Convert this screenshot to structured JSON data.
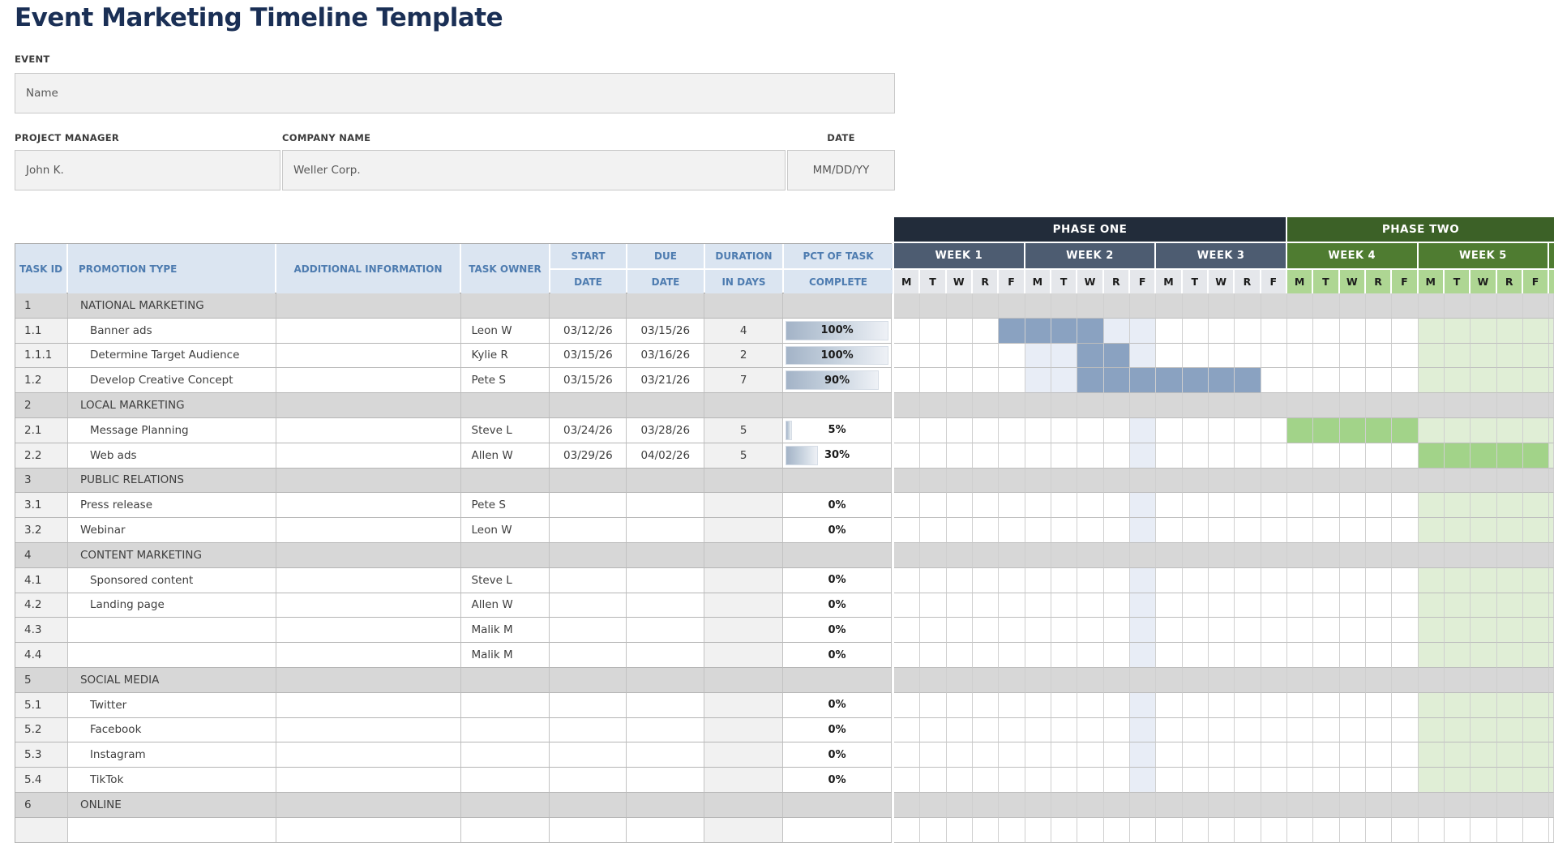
{
  "title": "Event Marketing Timeline Template",
  "form": {
    "event_label": "EVENT",
    "event_value": "Name",
    "pm_label": "PROJECT MANAGER",
    "pm_value": "John K.",
    "company_label": "COMPANY NAME",
    "company_value": "Weller Corp.",
    "date_label": "DATE",
    "date_value": "MM/DD/YY"
  },
  "table": {
    "headers": {
      "task_id": "TASK ID",
      "promotion_type": "PROMOTION TYPE",
      "additional_information": "ADDITIONAL INFORMATION",
      "task_owner": "TASK OWNER",
      "start_line1": "START",
      "start_line2": "DATE",
      "due_line1": "DUE",
      "due_line2": "DATE",
      "duration_line1": "DURATION",
      "duration_line2": "IN DAYS",
      "pct_line1": "PCT OF TASK",
      "pct_line2": "COMPLETE"
    },
    "rows": [
      {
        "id": "1",
        "name": "NATIONAL MARKETING",
        "section": true
      },
      {
        "id": "1.1",
        "name": "Banner ads",
        "indent": true,
        "owner": "Leon W",
        "start": "03/12/26",
        "due": "03/15/26",
        "duration": "4",
        "pct": "100%",
        "pct_num": 100,
        "gantt": {
          "bar": {
            "color": "blue",
            "from": 5,
            "to": 8
          },
          "tints": [
            {
              "color": "blue",
              "from": 9,
              "to": 10
            },
            {
              "color": "green",
              "from": 21,
              "to": 26
            }
          ]
        }
      },
      {
        "id": "1.1.1",
        "name": "Determine Target Audience",
        "indent": true,
        "owner": "Kylie R",
        "start": "03/15/26",
        "due": "03/16/26",
        "duration": "2",
        "pct": "100%",
        "pct_num": 100,
        "gantt": {
          "bar": {
            "color": "blue",
            "from": 8,
            "to": 9
          },
          "tints": [
            {
              "color": "blue",
              "from": 6,
              "to": 7
            },
            {
              "color": "blue",
              "from": 10,
              "to": 10
            },
            {
              "color": "green",
              "from": 21,
              "to": 26
            }
          ]
        }
      },
      {
        "id": "1.2",
        "name": "Develop Creative Concept",
        "indent": true,
        "owner": "Pete S",
        "start": "03/15/26",
        "due": "03/21/26",
        "duration": "7",
        "pct": "90%",
        "pct_num": 90,
        "gantt": {
          "bar": {
            "color": "blue",
            "from": 8,
            "to": 14
          },
          "tints": [
            {
              "color": "blue",
              "from": 6,
              "to": 7
            },
            {
              "color": "green",
              "from": 21,
              "to": 26
            }
          ]
        }
      },
      {
        "id": "2",
        "name": "LOCAL MARKETING",
        "section": true
      },
      {
        "id": "2.1",
        "name": "Message Planning",
        "indent": true,
        "owner": "Steve L",
        "start": "03/24/26",
        "due": "03/28/26",
        "duration": "5",
        "pct": "5%",
        "pct_num": 5,
        "gantt": {
          "bar": {
            "color": "green",
            "from": 16,
            "to": 20
          },
          "tints": [
            {
              "color": "blue",
              "from": 10,
              "to": 10
            },
            {
              "color": "green",
              "from": 21,
              "to": 26
            }
          ]
        }
      },
      {
        "id": "2.2",
        "name": "Web ads",
        "indent": true,
        "owner": "Allen W",
        "start": "03/29/26",
        "due": "04/02/26",
        "duration": "5",
        "pct": "30%",
        "pct_num": 30,
        "gantt": {
          "bar": {
            "color": "green",
            "from": 21,
            "to": 25
          },
          "tints": [
            {
              "color": "blue",
              "from": 10,
              "to": 10
            },
            {
              "color": "green",
              "from": 26,
              "to": 26
            }
          ]
        }
      },
      {
        "id": "3",
        "name": "PUBLIC RELATIONS",
        "section": true
      },
      {
        "id": "3.1",
        "name": "Press release",
        "owner": "Pete S",
        "pct": "0%",
        "pct_num": 0,
        "gantt": {
          "tints": [
            {
              "color": "blue",
              "from": 10,
              "to": 10
            },
            {
              "color": "green",
              "from": 21,
              "to": 26
            }
          ]
        }
      },
      {
        "id": "3.2",
        "name": "Webinar",
        "owner": "Leon W",
        "pct": "0%",
        "pct_num": 0,
        "gantt": {
          "tints": [
            {
              "color": "blue",
              "from": 10,
              "to": 10
            },
            {
              "color": "green",
              "from": 21,
              "to": 26
            }
          ]
        }
      },
      {
        "id": "4",
        "name": "CONTENT MARKETING",
        "section": true
      },
      {
        "id": "4.1",
        "name": "Sponsored content",
        "indent": true,
        "owner": "Steve L",
        "pct": "0%",
        "pct_num": 0,
        "gantt": {
          "tints": [
            {
              "color": "blue",
              "from": 10,
              "to": 10
            },
            {
              "color": "green",
              "from": 21,
              "to": 26
            }
          ]
        }
      },
      {
        "id": "4.2",
        "name": "Landing page",
        "indent": true,
        "owner": "Allen W",
        "pct": "0%",
        "pct_num": 0,
        "gantt": {
          "tints": [
            {
              "color": "blue",
              "from": 10,
              "to": 10
            },
            {
              "color": "green",
              "from": 21,
              "to": 26
            }
          ]
        }
      },
      {
        "id": "4.3",
        "name": "",
        "owner": "Malik M",
        "pct": "0%",
        "pct_num": 0,
        "gantt": {
          "tints": [
            {
              "color": "blue",
              "from": 10,
              "to": 10
            },
            {
              "color": "green",
              "from": 21,
              "to": 26
            }
          ]
        }
      },
      {
        "id": "4.4",
        "name": "",
        "owner": "Malik M",
        "pct": "0%",
        "pct_num": 0,
        "gantt": {
          "tints": [
            {
              "color": "blue",
              "from": 10,
              "to": 10
            },
            {
              "color": "green",
              "from": 21,
              "to": 26
            }
          ]
        }
      },
      {
        "id": "5",
        "name": "SOCIAL MEDIA",
        "section": true
      },
      {
        "id": "5.1",
        "name": "Twitter",
        "indent": true,
        "pct": "0%",
        "pct_num": 0,
        "gantt": {
          "tints": [
            {
              "color": "blue",
              "from": 10,
              "to": 10
            },
            {
              "color": "green",
              "from": 21,
              "to": 26
            }
          ]
        }
      },
      {
        "id": "5.2",
        "name": "Facebook",
        "indent": true,
        "pct": "0%",
        "pct_num": 0,
        "gantt": {
          "tints": [
            {
              "color": "blue",
              "from": 10,
              "to": 10
            },
            {
              "color": "green",
              "from": 21,
              "to": 26
            }
          ]
        }
      },
      {
        "id": "5.3",
        "name": "Instagram",
        "indent": true,
        "pct": "0%",
        "pct_num": 0,
        "gantt": {
          "tints": [
            {
              "color": "blue",
              "from": 10,
              "to": 10
            },
            {
              "color": "green",
              "from": 21,
              "to": 26
            }
          ]
        }
      },
      {
        "id": "5.4",
        "name": "TikTok",
        "indent": true,
        "pct": "0%",
        "pct_num": 0,
        "gantt": {
          "tints": [
            {
              "color": "blue",
              "from": 10,
              "to": 10
            },
            {
              "color": "green",
              "from": 21,
              "to": 26
            }
          ]
        }
      },
      {
        "id": "6",
        "name": "ONLINE",
        "section": true
      }
    ]
  },
  "gantt": {
    "phases": [
      {
        "label": "PHASE ONE",
        "theme": "blue",
        "weeks": [
          "WEEK 1",
          "WEEK 2",
          "WEEK 3"
        ]
      },
      {
        "label": "PHASE TWO",
        "theme": "green",
        "weeks": [
          "WEEK 4",
          "WEEK 5"
        ]
      }
    ],
    "day_letters": [
      "M",
      "T",
      "W",
      "R",
      "F"
    ],
    "days_per_week": 5
  },
  "colors": {
    "title_navy": "#1a2f55",
    "header_bg": "#dbe5f1",
    "header_text": "#4e7cb0",
    "section_bg": "#d7d7d7",
    "id_cell_bg": "#f1f1f1",
    "phase1_bg": "#222c3a",
    "week_blue": "#4d5c71",
    "day_blue_bg": "#e5e7eb",
    "phase2_bg": "#3c6127",
    "week_green": "#4f7c31",
    "day_green_bg": "#aed693",
    "bar_blue": "#8aa2c1",
    "tint_blue": "#e8edf6",
    "bar_green": "#a2d389",
    "tint_green": "#e0eed6"
  }
}
